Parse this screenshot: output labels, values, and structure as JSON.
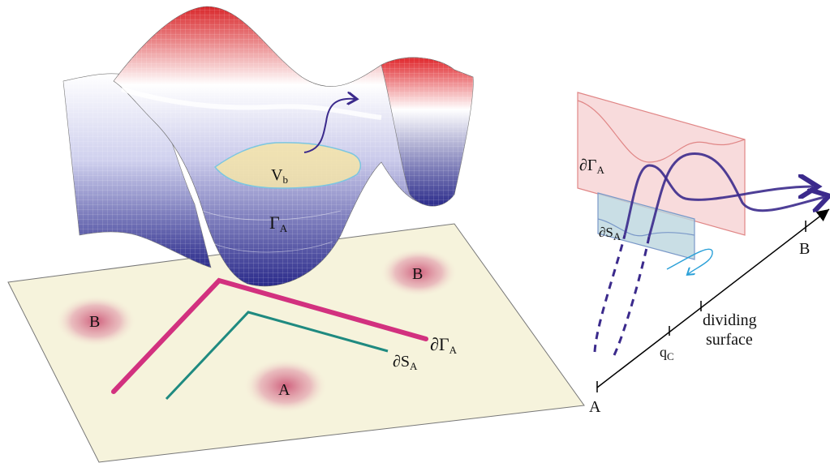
{
  "left_panel": {
    "landscape": {
      "basin_label": "Γ",
      "basin_sub": "A",
      "well_label": "V",
      "well_sub": "b"
    },
    "plane": {
      "basin_a_label": "A",
      "basin_b_left_label": "B",
      "basin_b_right_label": "B",
      "boundary_gamma_prefix": "∂Γ",
      "boundary_gamma_sub": "A",
      "boundary_s_prefix": "∂S",
      "boundary_s_sub": "A"
    }
  },
  "right_panel": {
    "gamma_plane_prefix": "∂Γ",
    "gamma_plane_sub": "A",
    "s_plane_prefix": "∂S",
    "s_plane_sub": "A",
    "axis_start_label": "A",
    "axis_end_label": "B",
    "qc_label": "q",
    "qc_sub": "C",
    "dividing_line1": "dividing",
    "dividing_line2": "surface"
  },
  "colors": {
    "landscape_high": "#d9262a",
    "landscape_mid": "#ffffff",
    "landscape_low": "#2a2a8a",
    "plane_fill": "#f6f3dc",
    "basin_fill": "#d97a92",
    "gamma_boundary": "#d2317f",
    "s_boundary": "#1f8a80",
    "trajectory": "#3b2a8c",
    "gamma_plane_fill": "#f6cfd0",
    "s_plane_fill": "#bcd6df",
    "recrossing_arrow": "#2aa0d8"
  }
}
